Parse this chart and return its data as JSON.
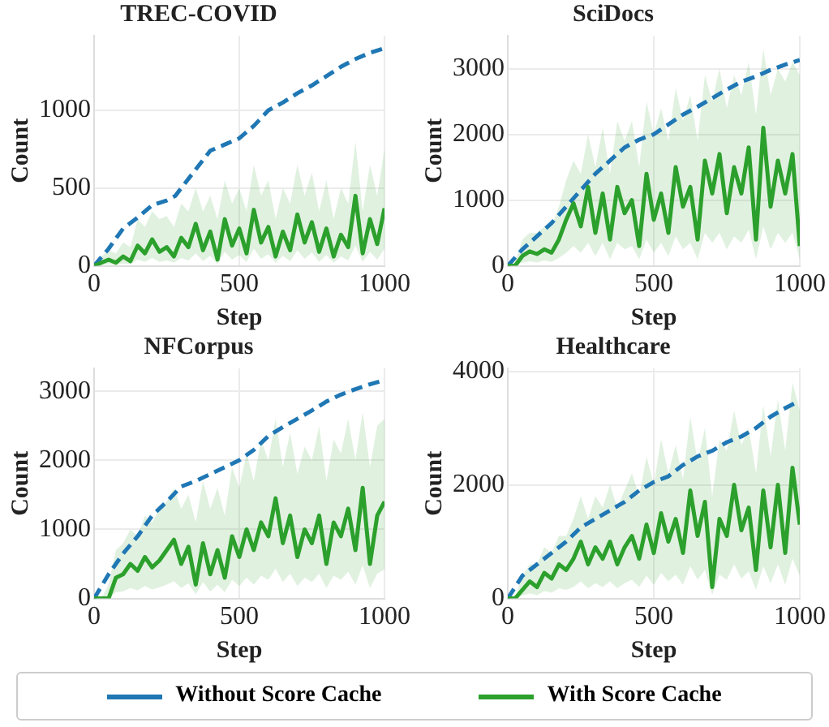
{
  "chart_data": [
    {
      "type": "line",
      "title": "TREC-COVID",
      "xlabel": "Step",
      "ylabel": "Count",
      "xlim": [
        0,
        1000
      ],
      "xticks": [
        0,
        500,
        1000
      ],
      "ylim": [
        0,
        1480
      ],
      "yticks": [
        0,
        500,
        1000
      ],
      "grid": true,
      "legend": "bottom",
      "series": [
        {
          "name": "Without Score Cache",
          "color": "#1f77b4",
          "line_style": "dashed",
          "x": [
            0,
            50,
            100,
            150,
            200,
            250,
            280,
            300,
            350,
            400,
            450,
            500,
            550,
            600,
            650,
            700,
            750,
            800,
            850,
            900,
            950,
            1000
          ],
          "values": [
            0,
            110,
            240,
            310,
            390,
            420,
            450,
            500,
            620,
            740,
            780,
            820,
            900,
            1000,
            1050,
            1110,
            1160,
            1220,
            1280,
            1330,
            1370,
            1400
          ]
        },
        {
          "name": "With Score Cache",
          "color": "#2ca02c",
          "line_style": "solid",
          "x": [
            0,
            25,
            50,
            75,
            100,
            125,
            150,
            175,
            200,
            225,
            250,
            275,
            300,
            325,
            350,
            375,
            400,
            425,
            450,
            475,
            500,
            525,
            550,
            575,
            600,
            625,
            650,
            675,
            700,
            725,
            750,
            775,
            800,
            825,
            850,
            875,
            900,
            925,
            950,
            975,
            1000
          ],
          "values": [
            0,
            20,
            40,
            20,
            60,
            30,
            130,
            80,
            170,
            90,
            120,
            60,
            180,
            120,
            270,
            100,
            220,
            40,
            300,
            130,
            240,
            80,
            360,
            150,
            250,
            60,
            220,
            100,
            330,
            150,
            280,
            90,
            240,
            60,
            200,
            120,
            450,
            80,
            300,
            140,
            370
          ],
          "lower": [
            0,
            5,
            10,
            5,
            15,
            10,
            40,
            25,
            50,
            25,
            35,
            20,
            50,
            35,
            80,
            30,
            65,
            10,
            90,
            40,
            70,
            25,
            110,
            45,
            75,
            20,
            65,
            30,
            100,
            45,
            85,
            25,
            70,
            20,
            60,
            35,
            130,
            25,
            90,
            40,
            110
          ],
          "upper": [
            0,
            60,
            100,
            80,
            150,
            120,
            300,
            250,
            350,
            300,
            320,
            250,
            400,
            350,
            500,
            350,
            450,
            300,
            550,
            400,
            500,
            350,
            650,
            450,
            550,
            300,
            500,
            400,
            650,
            450,
            600,
            350,
            550,
            300,
            500,
            400,
            800,
            350,
            650,
            450,
            750
          ]
        }
      ]
    },
    {
      "type": "line",
      "title": "SciDocs",
      "xlabel": "Step",
      "ylabel": "Count",
      "xlim": [
        0,
        1000
      ],
      "xticks": [
        0,
        500,
        1000
      ],
      "ylim": [
        0,
        3500
      ],
      "yticks": [
        0,
        1000,
        2000,
        3000
      ],
      "grid": true,
      "series": [
        {
          "color": "#1f77b4",
          "line_style": "dashed",
          "x": [
            0,
            50,
            100,
            150,
            200,
            250,
            300,
            350,
            400,
            450,
            500,
            550,
            600,
            650,
            700,
            750,
            800,
            850,
            900,
            950,
            1000
          ],
          "values": [
            0,
            250,
            450,
            650,
            900,
            1150,
            1400,
            1600,
            1800,
            1920,
            2000,
            2150,
            2300,
            2420,
            2550,
            2680,
            2800,
            2880,
            2980,
            3060,
            3130
          ]
        },
        {
          "color": "#2ca02c",
          "line_style": "solid",
          "x": [
            0,
            25,
            50,
            75,
            100,
            125,
            150,
            175,
            200,
            225,
            250,
            275,
            300,
            325,
            350,
            375,
            400,
            425,
            450,
            475,
            500,
            525,
            550,
            575,
            600,
            625,
            650,
            675,
            700,
            725,
            750,
            775,
            800,
            825,
            850,
            875,
            900,
            925,
            950,
            975,
            1000
          ],
          "values": [
            0,
            0,
            150,
            220,
            180,
            250,
            200,
            400,
            700,
            950,
            600,
            1200,
            500,
            1100,
            400,
            1200,
            800,
            1000,
            300,
            1400,
            700,
            1100,
            500,
            1500,
            900,
            1200,
            400,
            1600,
            1100,
            1700,
            800,
            1500,
            1100,
            1800,
            400,
            2100,
            900,
            1600,
            1100,
            1700,
            300
          ],
          "lower": [
            0,
            0,
            50,
            70,
            50,
            80,
            60,
            120,
            200,
            300,
            200,
            350,
            150,
            350,
            100,
            350,
            250,
            300,
            100,
            400,
            200,
            350,
            150,
            450,
            250,
            350,
            100,
            500,
            350,
            500,
            250,
            450,
            350,
            550,
            100,
            600,
            250,
            500,
            350,
            500,
            100
          ],
          "upper": [
            0,
            50,
            400,
            500,
            500,
            600,
            600,
            900,
            1300,
            1600,
            1400,
            2000,
            1500,
            2100,
            1400,
            2200,
            1900,
            2200,
            1500,
            2500,
            2000,
            2400,
            1900,
            2700,
            2200,
            2600,
            1900,
            2900,
            2500,
            3000,
            2400,
            2900,
            2600,
            3100,
            2300,
            3300,
            2600,
            3000,
            2800,
            3100,
            2900
          ]
        }
      ]
    },
    {
      "type": "line",
      "title": "NFCorpus",
      "xlabel": "Step",
      "ylabel": "Count",
      "xlim": [
        0,
        1000
      ],
      "xticks": [
        0,
        500,
        1000
      ],
      "ylim": [
        0,
        3330
      ],
      "yticks": [
        0,
        1000,
        2000,
        3000
      ],
      "grid": true,
      "series": [
        {
          "color": "#1f77b4",
          "line_style": "dashed",
          "x": [
            0,
            50,
            100,
            150,
            200,
            250,
            300,
            350,
            400,
            450,
            500,
            550,
            600,
            650,
            700,
            750,
            800,
            850,
            900,
            950,
            1000
          ],
          "values": [
            0,
            350,
            650,
            900,
            1200,
            1400,
            1620,
            1700,
            1800,
            1900,
            2000,
            2150,
            2350,
            2480,
            2600,
            2720,
            2850,
            2950,
            3030,
            3100,
            3160
          ]
        },
        {
          "color": "#2ca02c",
          "line_style": "solid",
          "x": [
            0,
            25,
            50,
            75,
            100,
            125,
            150,
            175,
            200,
            225,
            250,
            275,
            300,
            325,
            350,
            375,
            400,
            425,
            450,
            475,
            500,
            525,
            550,
            575,
            600,
            625,
            650,
            675,
            700,
            725,
            750,
            775,
            800,
            825,
            850,
            875,
            900,
            925,
            950,
            975,
            1000
          ],
          "values": [
            0,
            0,
            0,
            300,
            350,
            500,
            400,
            600,
            450,
            550,
            700,
            850,
            500,
            750,
            200,
            800,
            350,
            700,
            300,
            900,
            600,
            1000,
            700,
            1100,
            900,
            1450,
            800,
            1200,
            600,
            1000,
            800,
            1200,
            500,
            1100,
            900,
            1300,
            700,
            1600,
            500,
            1200,
            1400
          ],
          "lower": [
            0,
            0,
            0,
            90,
            100,
            150,
            120,
            180,
            130,
            160,
            200,
            250,
            150,
            220,
            60,
            240,
            100,
            200,
            90,
            270,
            180,
            300,
            200,
            330,
            270,
            430,
            240,
            360,
            180,
            300,
            240,
            360,
            150,
            330,
            270,
            390,
            200,
            480,
            150,
            360,
            420
          ],
          "upper": [
            0,
            0,
            200,
            700,
            800,
            1000,
            900,
            1200,
            1100,
            1300,
            1400,
            1600,
            1300,
            1500,
            1100,
            1700,
            1300,
            1600,
            1200,
            1900,
            1600,
            2100,
            1700,
            2300,
            2000,
            2600,
            1900,
            2400,
            1800,
            2200,
            2000,
            2500,
            1700,
            2300,
            2100,
            2600,
            2000,
            2700,
            1900,
            2500,
            2600
          ]
        }
      ]
    },
    {
      "type": "line",
      "title": "Healthcare",
      "xlabel": "Step",
      "ylabel": "Count",
      "xlim": [
        0,
        1000
      ],
      "xticks": [
        0,
        500,
        1000
      ],
      "ylim": [
        0,
        4050
      ],
      "yticks": [
        0,
        2000,
        4000
      ],
      "grid": true,
      "series": [
        {
          "color": "#1f77b4",
          "line_style": "dashed",
          "x": [
            0,
            50,
            100,
            150,
            200,
            250,
            300,
            350,
            400,
            450,
            500,
            550,
            600,
            650,
            700,
            750,
            800,
            850,
            900,
            950,
            1000
          ],
          "values": [
            0,
            400,
            600,
            800,
            1000,
            1250,
            1400,
            1550,
            1700,
            1900,
            2050,
            2150,
            2350,
            2500,
            2600,
            2750,
            2850,
            3000,
            3200,
            3350,
            3480
          ]
        },
        {
          "color": "#2ca02c",
          "line_style": "solid",
          "x": [
            0,
            25,
            50,
            75,
            100,
            125,
            150,
            175,
            200,
            225,
            250,
            275,
            300,
            325,
            350,
            375,
            400,
            425,
            450,
            475,
            500,
            525,
            550,
            575,
            600,
            625,
            650,
            675,
            700,
            725,
            750,
            775,
            800,
            825,
            850,
            875,
            900,
            925,
            950,
            975,
            1000
          ],
          "values": [
            0,
            0,
            150,
            300,
            200,
            450,
            350,
            600,
            500,
            700,
            1000,
            600,
            900,
            700,
            1000,
            600,
            900,
            1100,
            700,
            1300,
            800,
            1500,
            1000,
            1400,
            800,
            1900,
            1100,
            1700,
            200,
            1400,
            1100,
            2000,
            1200,
            1600,
            500,
            1900,
            900,
            2000,
            800,
            2300,
            1300
          ],
          "lower": [
            0,
            0,
            50,
            90,
            60,
            130,
            100,
            180,
            150,
            200,
            300,
            180,
            270,
            200,
            300,
            180,
            270,
            330,
            200,
            400,
            240,
            450,
            300,
            420,
            240,
            570,
            330,
            500,
            60,
            420,
            330,
            600,
            350,
            480,
            150,
            570,
            270,
            600,
            240,
            700,
            400
          ],
          "upper": [
            0,
            0,
            400,
            600,
            600,
            900,
            800,
            1100,
            1100,
            1400,
            1800,
            1400,
            1800,
            1600,
            2000,
            1600,
            1900,
            2200,
            1800,
            2500,
            2000,
            2800,
            2200,
            2700,
            2100,
            3200,
            2400,
            3000,
            1800,
            2800,
            2600,
            3300,
            2700,
            3000,
            2200,
            3400,
            2500,
            3500,
            2600,
            3800,
            3300
          ]
        }
      ]
    }
  ]
}
